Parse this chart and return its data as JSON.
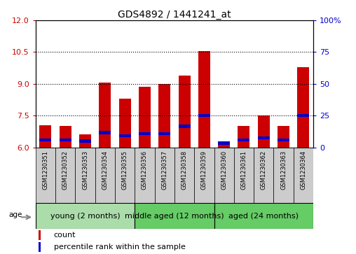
{
  "title": "GDS4892 / 1441241_at",
  "samples": [
    "GSM1230351",
    "GSM1230352",
    "GSM1230353",
    "GSM1230354",
    "GSM1230355",
    "GSM1230356",
    "GSM1230357",
    "GSM1230358",
    "GSM1230359",
    "GSM1230360",
    "GSM1230361",
    "GSM1230362",
    "GSM1230363",
    "GSM1230364"
  ],
  "count_values": [
    7.05,
    7.0,
    6.6,
    9.05,
    8.3,
    8.85,
    9.0,
    9.4,
    10.55,
    6.15,
    7.0,
    7.5,
    7.0,
    9.8
  ],
  "percentile_values": [
    6.35,
    6.35,
    6.3,
    6.7,
    6.55,
    6.65,
    6.65,
    7.0,
    7.5,
    6.2,
    6.35,
    6.45,
    6.35,
    7.5
  ],
  "ylim_left": [
    6,
    12
  ],
  "ylim_right": [
    0,
    100
  ],
  "yticks_left": [
    6,
    7.5,
    9,
    10.5,
    12
  ],
  "yticks_right": [
    0,
    25,
    50,
    75,
    100
  ],
  "bar_color": "#cc0000",
  "percentile_color": "#0000cc",
  "bar_width": 0.6,
  "young_color": "#aaddaa",
  "middle_color": "#66cc66",
  "aged_color": "#66cc66",
  "legend_count_label": "count",
  "legend_percentile_label": "percentile rank within the sample",
  "age_label": "age",
  "background_color": "#ffffff",
  "plot_bg_color": "#ffffff",
  "tick_label_color_left": "#cc0000",
  "tick_label_color_right": "#0000cc",
  "grid_color": "#000000",
  "grid_linestyle": ":",
  "sample_box_color": "#cccccc",
  "title_fontsize": 10,
  "legend_fontsize": 8,
  "group_fontsize": 8,
  "ytick_fontsize": 8
}
